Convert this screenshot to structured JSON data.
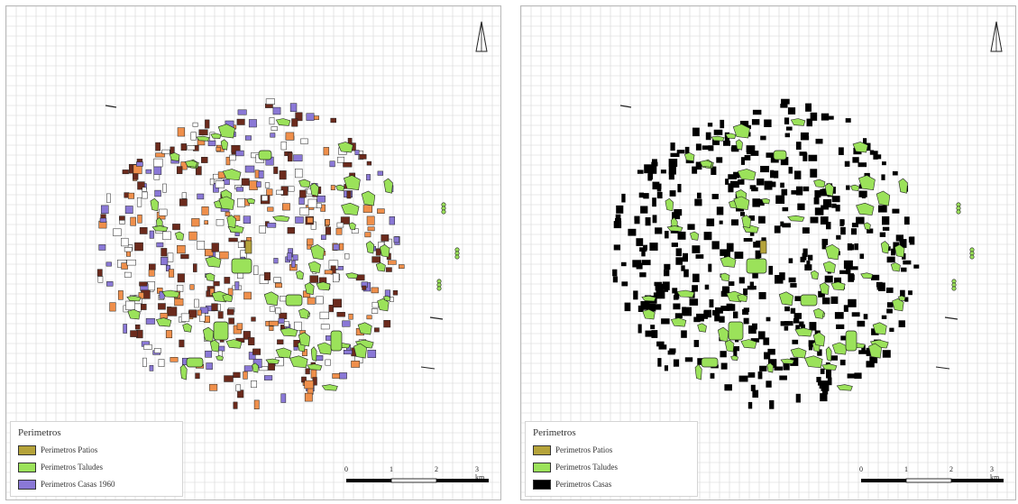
{
  "panels": [
    {
      "id": "left",
      "legend": {
        "title": "Perimetros",
        "items": [
          {
            "label": "Perimetros Patios",
            "color": "#b5a33a"
          },
          {
            "label": "Perimetros Taludes",
            "color": "#9be25a"
          },
          {
            "label": "Perimetros Casas 1960",
            "color": "#8a78d6"
          }
        ]
      },
      "building_colors": [
        "#8a78d6",
        "#ef8f4b",
        "#6b2a1c",
        "#ffffff"
      ],
      "scale": {
        "labels": [
          "0",
          "1",
          "2",
          "3 km"
        ]
      }
    },
    {
      "id": "right",
      "legend": {
        "title": "Perimetros",
        "items": [
          {
            "label": "Perimetros Patios",
            "color": "#b5a33a"
          },
          {
            "label": "Perimetros Taludes",
            "color": "#9be25a"
          },
          {
            "label": "Perimetros Casas",
            "color": "#000000"
          }
        ]
      },
      "building_colors": [
        "#000000"
      ],
      "scale": {
        "labels": [
          "0",
          "1",
          "2",
          "3 km"
        ]
      }
    }
  ],
  "colors": {
    "grid": "#d6d6d6",
    "patios": "#b5a33a",
    "taludes": "#9be25a",
    "outline": "#222222"
  }
}
